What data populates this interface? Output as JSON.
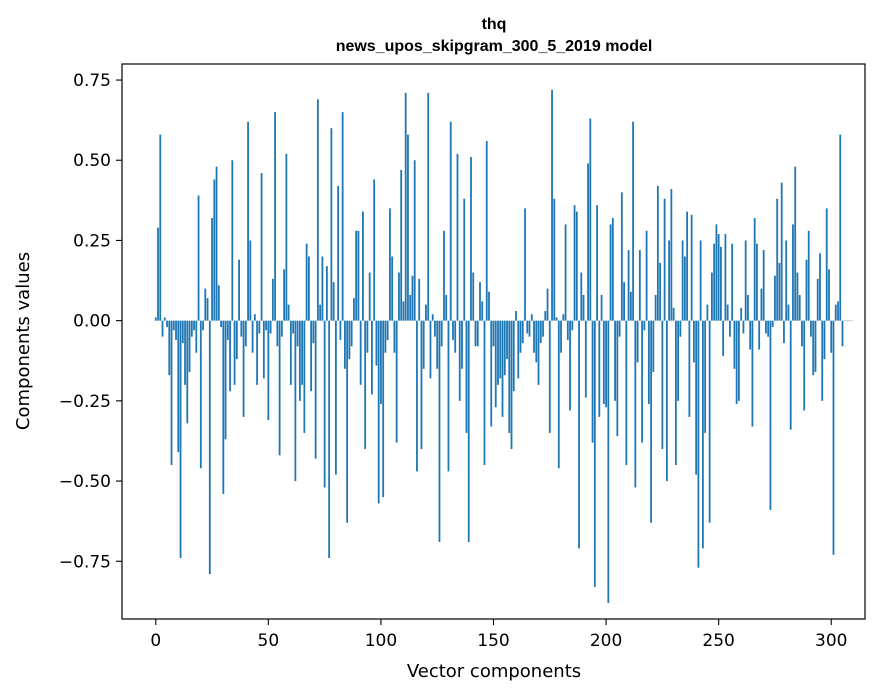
{
  "chart_data": {
    "type": "bar",
    "title": "thq",
    "subtitle": "news_upos_skipgram_300_5_2019 model",
    "xlabel": "Vector components",
    "ylabel": "Components values",
    "xlim": [
      -15,
      315
    ],
    "ylim": [
      -0.93,
      0.8
    ],
    "x_ticks": [
      0,
      50,
      100,
      150,
      200,
      250,
      300
    ],
    "x_tick_labels": [
      "0",
      "50",
      "100",
      "150",
      "200",
      "250",
      "300"
    ],
    "y_ticks": [
      0.75,
      0.5,
      0.25,
      0.0,
      -0.25,
      -0.5,
      -0.75
    ],
    "y_tick_labels": [
      "0.75",
      "0.50",
      "0.25",
      "0.00",
      "−0.25",
      "−0.50",
      "−0.75"
    ],
    "bar_color": "#1f77b4",
    "values": [
      0.01,
      0.29,
      0.58,
      -0.05,
      0.01,
      -0.02,
      -0.17,
      -0.45,
      -0.03,
      -0.06,
      -0.41,
      -0.74,
      -0.07,
      -0.2,
      -0.32,
      -0.16,
      -0.05,
      -0.03,
      -0.1,
      0.39,
      -0.46,
      -0.03,
      0.1,
      0.07,
      -0.79,
      0.32,
      0.44,
      0.48,
      0.11,
      -0.02,
      -0.54,
      -0.37,
      -0.06,
      -0.22,
      0.5,
      -0.2,
      -0.12,
      0.19,
      -0.05,
      -0.3,
      -0.08,
      0.62,
      0.25,
      -0.1,
      0.02,
      -0.2,
      -0.04,
      0.46,
      -0.18,
      -0.03,
      -0.31,
      -0.04,
      0.13,
      0.65,
      -0.08,
      -0.42,
      -0.05,
      0.16,
      0.52,
      0.05,
      -0.2,
      -0.04,
      -0.5,
      -0.08,
      -0.25,
      -0.2,
      -0.35,
      0.24,
      0.2,
      -0.22,
      -0.07,
      -0.43,
      0.69,
      0.05,
      0.2,
      -0.52,
      0.17,
      -0.74,
      0.6,
      0.12,
      -0.48,
      0.42,
      -0.06,
      0.65,
      -0.15,
      -0.63,
      -0.12,
      -0.08,
      0.07,
      0.28,
      0.28,
      -0.2,
      0.34,
      -0.4,
      -0.1,
      0.15,
      -0.23,
      0.44,
      -0.14,
      -0.57,
      -0.26,
      -0.55,
      -0.1,
      -0.06,
      0.35,
      0.2,
      -0.1,
      -0.38,
      0.15,
      0.47,
      0.06,
      0.71,
      0.58,
      0.08,
      0.14,
      0.5,
      -0.47,
      0.13,
      -0.4,
      -0.15,
      0.05,
      0.71,
      -0.18,
      0.02,
      -0.05,
      -0.15,
      -0.69,
      -0.08,
      0.28,
      0.08,
      -0.47,
      0.62,
      -0.06,
      -0.1,
      0.52,
      -0.25,
      -0.15,
      0.38,
      -0.35,
      -0.69,
      0.51,
      0.15,
      -0.08,
      -0.08,
      0.12,
      0.06,
      -0.45,
      0.56,
      0.09,
      -0.33,
      -0.08,
      -0.27,
      -0.2,
      -0.18,
      -0.3,
      -0.17,
      -0.12,
      -0.35,
      -0.4,
      -0.22,
      0.03,
      -0.18,
      -0.1,
      -0.07,
      0.35,
      -0.04,
      -0.05,
      0.02,
      -0.1,
      -0.13,
      -0.2,
      -0.07,
      -0.05,
      0.03,
      0.1,
      -0.35,
      0.72,
      0.38,
      0.01,
      -0.46,
      -0.1,
      0.02,
      0.3,
      -0.06,
      -0.28,
      -0.03,
      0.36,
      0.34,
      -0.71,
      0.15,
      0.08,
      -0.24,
      0.49,
      0.63,
      -0.38,
      -0.83,
      0.36,
      -0.3,
      0.08,
      -0.26,
      -0.27,
      -0.88,
      0.3,
      0.32,
      -0.25,
      -0.36,
      -0.05,
      0.4,
      0.12,
      -0.45,
      0.22,
      0.09,
      0.62,
      -0.52,
      -0.13,
      0.22,
      -0.38,
      -0.03,
      0.28,
      -0.26,
      -0.63,
      -0.16,
      0.08,
      0.42,
      0.18,
      -0.4,
      0.38,
      -0.5,
      0.25,
      0.41,
      0.04,
      -0.45,
      -0.25,
      -0.05,
      0.25,
      0.2,
      0.34,
      -0.3,
      0.33,
      -0.13,
      -0.48,
      -0.77,
      0.25,
      -0.71,
      -0.35,
      0.05,
      -0.63,
      0.15,
      0.24,
      0.3,
      0.27,
      0.23,
      -0.11,
      0.27,
      0.05,
      -0.05,
      0.24,
      -0.15,
      -0.26,
      -0.25,
      0.04,
      -0.04,
      0.25,
      0.08,
      -0.09,
      -0.33,
      0.32,
      0.24,
      -0.09,
      0.1,
      0.22,
      -0.04,
      -0.05,
      -0.59,
      -0.02,
      0.14,
      0.38,
      0.18,
      0.43,
      -0.07,
      0.25,
      0.05,
      -0.34,
      0.3,
      0.48,
      0.15,
      0.08,
      -0.08,
      -0.28,
      0.19,
      0.28,
      -0.05,
      -0.17,
      -0.16,
      0.13,
      0.21,
      -0.25,
      -0.12,
      0.35,
      0.16,
      -0.1,
      -0.73,
      0.05,
      0.06,
      0.58,
      -0.08,
      0.0,
      0.0,
      0.0,
      0.0
    ]
  }
}
